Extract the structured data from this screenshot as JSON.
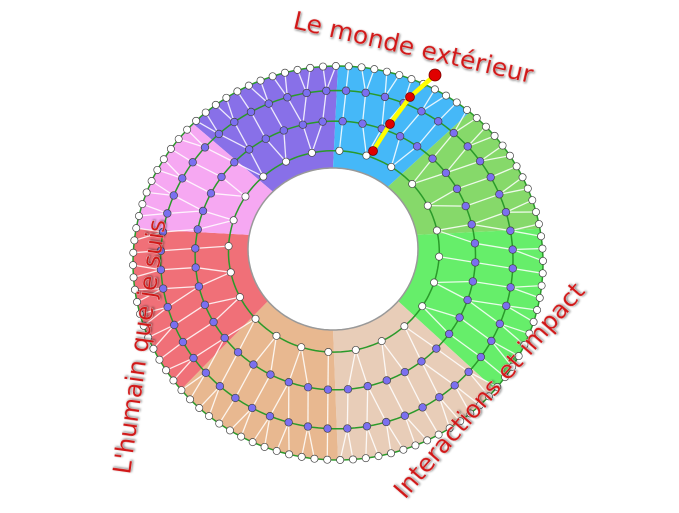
{
  "labels": {
    "top": "Le monde extérieur",
    "left": "L'humain que je suis",
    "bottom_right": "Interactions et impact"
  },
  "colors": {
    "label": "#d01818",
    "ring_line": "#2a9a2a",
    "node_fill": "#7b6ff0",
    "boundary_node_fill": "#ffffff",
    "path": "#ffff00",
    "path_node": "#e00000"
  },
  "sectors": [
    {
      "name": "purple",
      "color": "#8870e8"
    },
    {
      "name": "blue",
      "color": "#45b8f8"
    },
    {
      "name": "dark-green",
      "color": "#86d96a"
    },
    {
      "name": "light-green",
      "color": "#66ee6a"
    },
    {
      "name": "beige",
      "color": "#e8cdb8"
    },
    {
      "name": "tan",
      "color": "#e8b890"
    },
    {
      "name": "red",
      "color": "#f07078"
    },
    {
      "name": "pink",
      "color": "#f6a8f2"
    }
  ]
}
